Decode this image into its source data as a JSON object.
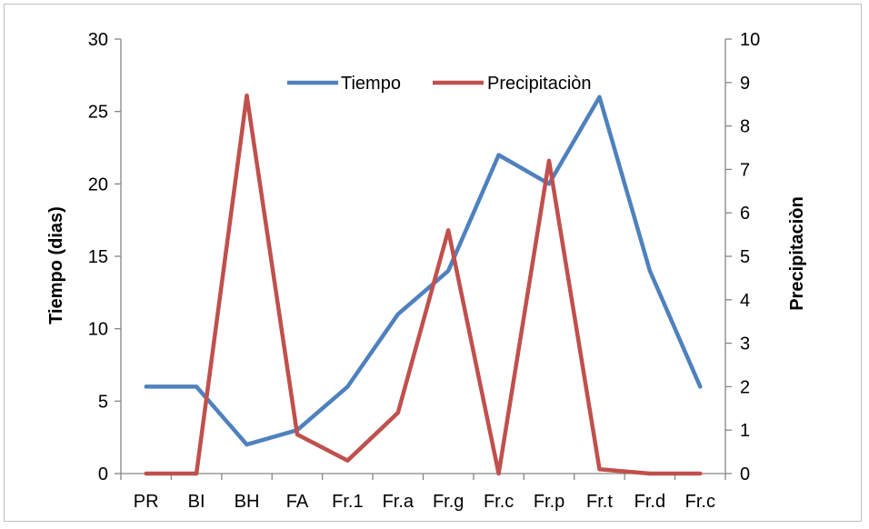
{
  "chart_data": {
    "type": "line",
    "categories": [
      "PR",
      "BI",
      "BH",
      "FA",
      "Fr.1",
      "Fr.a",
      "Fr.g",
      "Fr.c",
      "Fr.p",
      "Fr.t",
      "Fr.d",
      "Fr.c"
    ],
    "series": [
      {
        "name": "Tiempo",
        "axis": "left",
        "color": "#4f81bd",
        "values": [
          6,
          6,
          2,
          3,
          6,
          11,
          14,
          22,
          20,
          26,
          14,
          6
        ]
      },
      {
        "name": "Precipitaciòn",
        "axis": "right",
        "color": "#c0504d",
        "values": [
          0,
          0,
          8.7,
          0.9,
          0.3,
          1.4,
          5.6,
          0,
          7.2,
          0.1,
          0,
          0
        ]
      }
    ],
    "ylabel": "Tiempo (dias)",
    "y2label": "Precipitaciòn",
    "ylim": [
      0,
      30
    ],
    "y2lim": [
      0,
      10
    ],
    "yticks": [
      "0",
      "5",
      "10",
      "15",
      "20",
      "25",
      "30"
    ],
    "y2ticks": [
      "0",
      "1",
      "2",
      "3",
      "4",
      "5",
      "6",
      "7",
      "8",
      "9",
      "10"
    ],
    "grid": false,
    "legend_position": "top-center"
  }
}
